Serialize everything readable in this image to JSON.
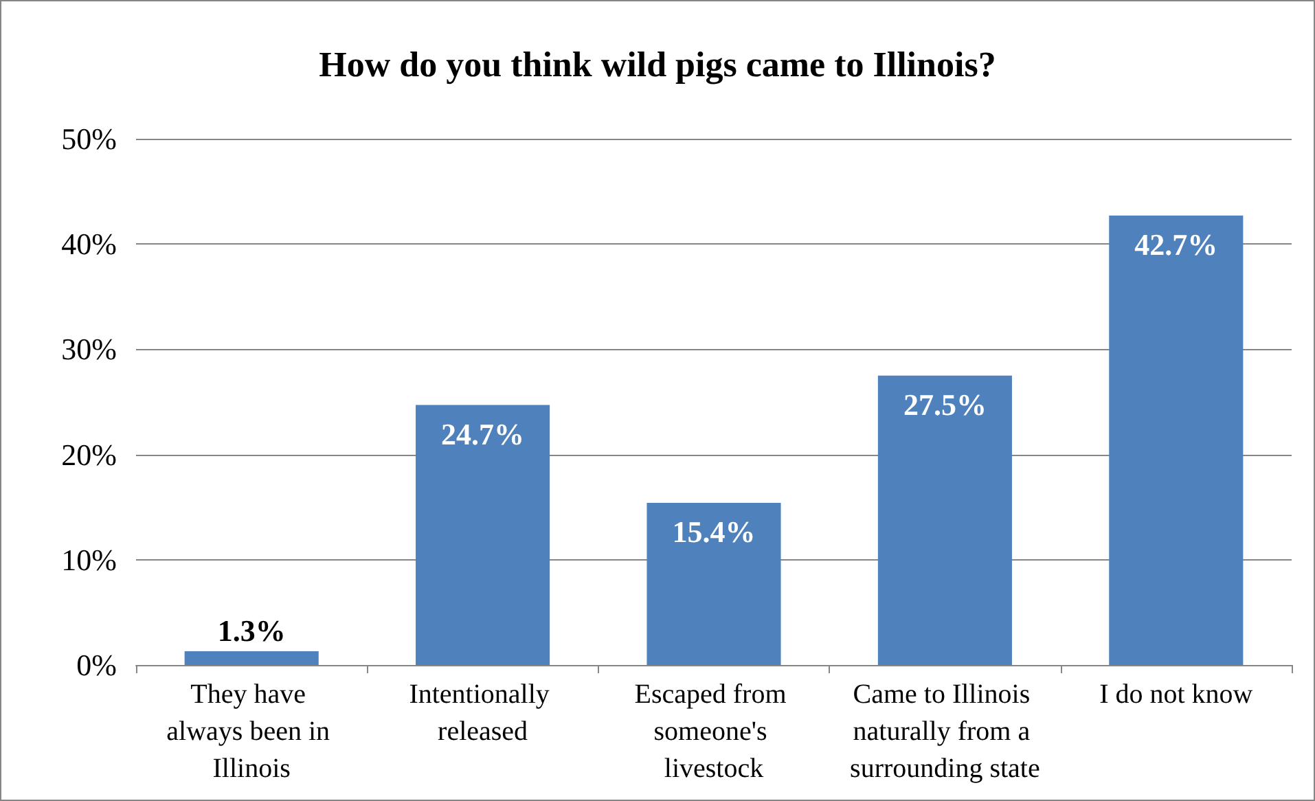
{
  "chart_data": {
    "type": "bar",
    "title": "How do you think wild pigs came to Illinois?",
    "categories": [
      "They have always been in Illinois",
      "Intentionally released",
      "Escaped from someone's livestock",
      "Came to Illinois naturally from a surrounding state",
      "I do not know"
    ],
    "values": [
      1.3,
      24.7,
      15.4,
      27.5,
      42.7
    ],
    "value_labels": [
      "1.3%",
      "24.7%",
      "15.4%",
      "27.5%",
      "42.7%"
    ],
    "color": "#4f81bd",
    "ylim": [
      0,
      50
    ],
    "yticks": [
      {
        "value": 0,
        "label": "0%"
      },
      {
        "value": 10,
        "label": "10%"
      },
      {
        "value": 20,
        "label": "20%"
      },
      {
        "value": 30,
        "label": "30%"
      },
      {
        "value": 40,
        "label": "40%"
      },
      {
        "value": 50,
        "label": "50%"
      }
    ],
    "grid": "y"
  }
}
